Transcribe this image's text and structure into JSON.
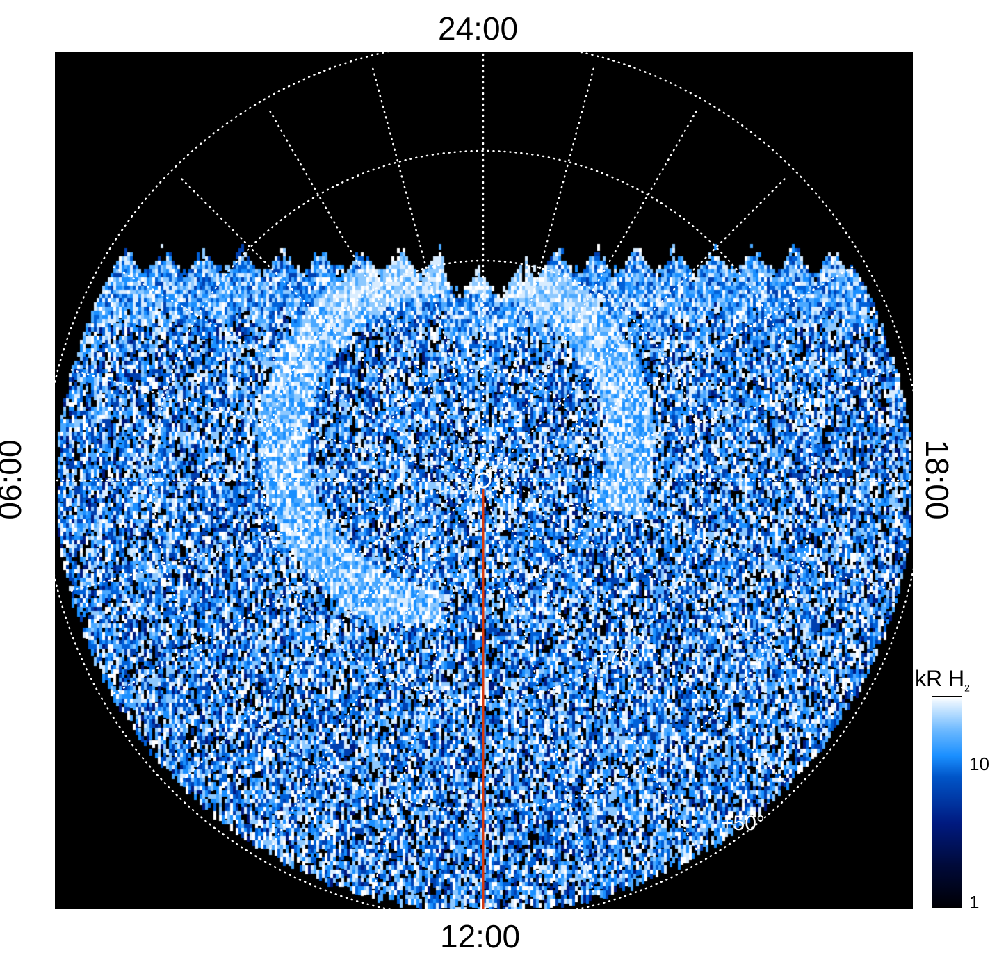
{
  "chart_data": {
    "type": "heatmap",
    "projection": "polar (local time vs latitude)",
    "local_time_labels": {
      "top": "24:00",
      "bottom": "12:00",
      "left": "06:00",
      "right": "18:00"
    },
    "latitude_labels": [
      "+70°",
      "+50°"
    ],
    "latitude_circles_deg": [
      80,
      70,
      60,
      50
    ],
    "meridian_spacing_hours": 1,
    "grid": true,
    "colorbar": {
      "title": "kR H",
      "title_subscript": "2",
      "scale": "log",
      "range": [
        1,
        30
      ],
      "tick_labels": [
        "10",
        "1"
      ],
      "colors": [
        "#000005",
        "#001a80",
        "#1a8fff",
        "#ffffff"
      ]
    },
    "marker_line_color": "#d83a10",
    "marker_line_local_time": "12:00"
  }
}
